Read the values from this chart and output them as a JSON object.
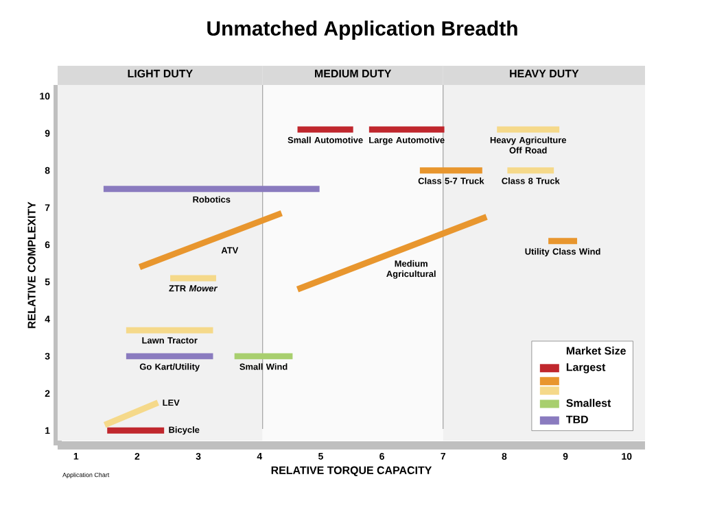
{
  "chart_data": {
    "type": "line",
    "title": "Unmatched Application Breadth",
    "xlabel": "RELATIVE TORQUE CAPACITY",
    "ylabel": "RELATIVE COMPLEXITY",
    "legend_title": "Market Size",
    "legend": "bottom right",
    "line_style": "solid",
    "xlim": [
      0.7,
      10.3
    ],
    "ylim": [
      0.6,
      10.3
    ],
    "xticks": [
      1,
      2,
      3,
      4,
      5,
      6,
      7,
      8,
      9,
      10
    ],
    "yticks": [
      1,
      2,
      3,
      4,
      5,
      6,
      7,
      8,
      9,
      10
    ],
    "series": [
      {
        "name": "Largest",
        "color": "#c0272d",
        "x": [
          4.62,
          5.53,
          null,
          5.79,
          7.02,
          null,
          1.51,
          2.44
        ],
        "values": [
          9.1,
          9.1,
          null,
          9.1,
          9.1,
          null,
          1.0,
          1.0
        ]
      },
      {
        "color": "#e8962e",
        "x": [
          2.04,
          4.36,
          null,
          6.62,
          7.64,
          null,
          4.62,
          7.71,
          null,
          8.72,
          9.19
        ],
        "values": [
          5.4,
          6.85,
          null,
          8.0,
          8.0,
          null,
          4.8,
          6.75,
          null,
          6.1,
          6.1
        ]
      },
      {
        "color": "#f5d98a",
        "x": [
          2.54,
          3.29,
          null,
          7.88,
          8.9,
          null,
          8.05,
          8.81,
          null,
          1.82,
          3.24,
          null,
          1.47,
          2.34
        ],
        "values": [
          5.1,
          5.1,
          null,
          9.1,
          9.1,
          null,
          8.0,
          8.0,
          null,
          3.7,
          3.7,
          null,
          1.15,
          1.75
        ]
      },
      {
        "name": "Smallest",
        "color": "#a8cf6e",
        "x": [
          3.59,
          4.54
        ],
        "values": [
          3.0,
          3.0
        ]
      },
      {
        "name": "TBD",
        "color": "#8a7bbf",
        "x": [
          1.45,
          4.98,
          null,
          1.82,
          3.24
        ],
        "values": [
          7.5,
          7.5,
          null,
          3.0,
          3.0
        ]
      }
    ],
    "bands": [
      {
        "axis": "x",
        "from": 0.7,
        "to": 4.05,
        "label": "LIGHT DUTY",
        "color": "#f1f1f1"
      },
      {
        "axis": "x",
        "from": 4.05,
        "to": 7.0,
        "label": "MEDIUM DUTY",
        "color": "#fafafa"
      },
      {
        "axis": "x",
        "from": 7.0,
        "to": 10.3,
        "label": "HEAVY DUTY",
        "color": "#f1f1f1"
      }
    ],
    "annotations": [
      {
        "text": "Robotics",
        "x": 3.215,
        "y": 7.5
      },
      {
        "text": "ATV",
        "x": 3.2,
        "y": 6.125
      },
      {
        "text": "ZTR *Mower*",
        "x": 2.915,
        "y": 5.1
      },
      {
        "text": "Small Automotive",
        "x": 5.075,
        "y": 9.1
      },
      {
        "text": "Large Automotive",
        "x": 6.405,
        "y": 9.1
      },
      {
        "text": "Heavy Agriculture Off Road",
        "x": 8.39,
        "y": 9.1
      },
      {
        "text": "Class 5-7 Truck",
        "x": 7.13,
        "y": 8.0
      },
      {
        "text": "Class 8 Truck",
        "x": 8.43,
        "y": 8.0
      },
      {
        "text": "Medium Agricultural",
        "x": 6.165,
        "y": 5.775
      },
      {
        "text": "Utility Class Wind",
        "x": 8.955,
        "y": 6.1
      },
      {
        "text": "Lawn Tractor",
        "x": 2.53,
        "y": 3.7
      },
      {
        "text": "Go Kart/Utility",
        "x": 2.53,
        "y": 3.0
      },
      {
        "text": "Small Wind",
        "x": 4.065,
        "y": 3.0
      },
      {
        "text": "LEV",
        "x": 2.34,
        "y": 1.75
      },
      {
        "text": "Bicycle",
        "x": 2.44,
        "y": 1.0
      },
      "Application Chart"
    ]
  }
}
